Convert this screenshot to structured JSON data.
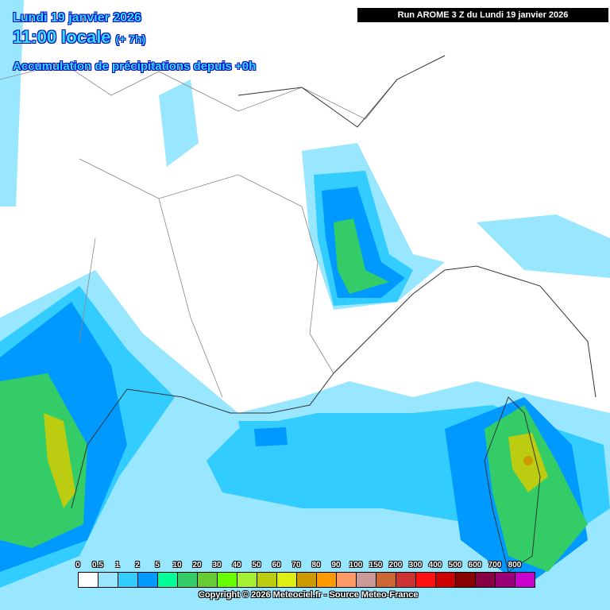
{
  "header": {
    "date": "Lundi 19 janvier 2026",
    "time": "11:00 locale",
    "lead": "(+ 7h)",
    "product": "Accumulation de précipitations depuis +0h",
    "run": "Run AROME 3 Z du Lundi 19 janvier 2026"
  },
  "legend": {
    "unit_labels": [
      "0",
      "0.5",
      "1",
      "2",
      "5",
      "10",
      "20",
      "30",
      "40",
      "50",
      "60",
      "70",
      "80",
      "90",
      "100",
      "150",
      "200",
      "300",
      "400",
      "500",
      "600",
      "700",
      "800"
    ],
    "colors": [
      "#ffffff",
      "#99e6ff",
      "#33ccff",
      "#0099ff",
      "#00ff99",
      "#33cc66",
      "#66cc33",
      "#66ff00",
      "#a6f033",
      "#bbcc11",
      "#ddee11",
      "#cc9900",
      "#ff9900",
      "#ff9966",
      "#cc9999",
      "#cc6633",
      "#cc3333",
      "#ff1111",
      "#cc0000",
      "#880000",
      "#880044",
      "#990077",
      "#cc00cc"
    ]
  },
  "footer": {
    "copyright": "Copyright © 2026 Meteociel.fr - Source Meteo-France"
  }
}
